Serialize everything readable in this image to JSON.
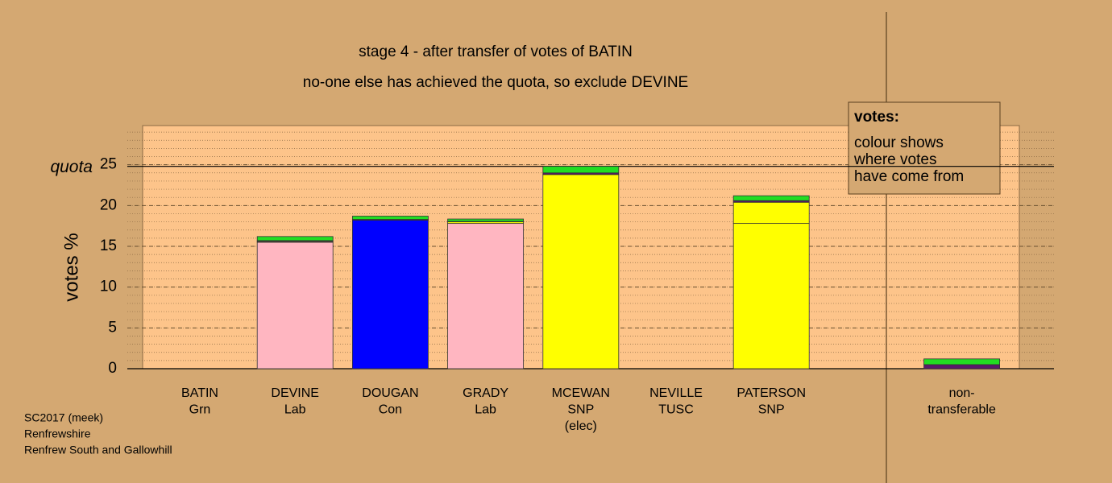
{
  "chart_data": {
    "type": "stacked-bar",
    "title": "stage 4 - after transfer of votes of BATIN",
    "subtitle": "no-one else has achieved the quota, so exclude DEVINE",
    "ylabel": "votes %",
    "categories": [
      [
        "BATIN",
        "Grn"
      ],
      [
        "DEVINE",
        "Lab"
      ],
      [
        "DOUGAN",
        "Con"
      ],
      [
        "GRADY",
        "Lab"
      ],
      [
        "MCEWAN",
        "SNP",
        "(elec)"
      ],
      [
        "NEVILLE",
        "TUSC"
      ],
      [
        "PATERSON",
        "SNP"
      ],
      null,
      [
        "non-",
        "transferable"
      ]
    ],
    "series": [
      {
        "colors": [
          "#00e000",
          "#ffb6c1",
          "#0000ff",
          "#ffb6c1",
          "#ffff00",
          "#c00000",
          "#ffff00",
          null,
          "#0000aa"
        ],
        "values": [
          0,
          15.5,
          18.2,
          17.8,
          23.8,
          0,
          17.8,
          null,
          0
        ]
      },
      {
        "color": "#ffff00",
        "values": [
          0,
          0.1,
          0.05,
          0.2,
          0,
          0,
          2.6,
          null,
          0
        ]
      },
      {
        "color": "#5a1a6a",
        "values": [
          0,
          0.1,
          0.05,
          0.05,
          0.2,
          0,
          0.2,
          null,
          0.5
        ]
      },
      {
        "color": "#22dd22",
        "values": [
          0,
          0.5,
          0.4,
          0.3,
          0.8,
          0,
          0.6,
          null,
          0.7
        ]
      }
    ],
    "ylim": [
      0,
      29.8
    ],
    "yticks": [
      0,
      5,
      10,
      15,
      20,
      25
    ],
    "grid": true,
    "quota": 24.8,
    "quota_label": "quota",
    "legend": {
      "title": "votes:",
      "lines": [
        "colour shows",
        "where votes",
        "have come from"
      ]
    },
    "footer": [
      "SC2017 (meek)",
      "Renfrewshire",
      "Renfrew South and Gallowhill"
    ]
  }
}
